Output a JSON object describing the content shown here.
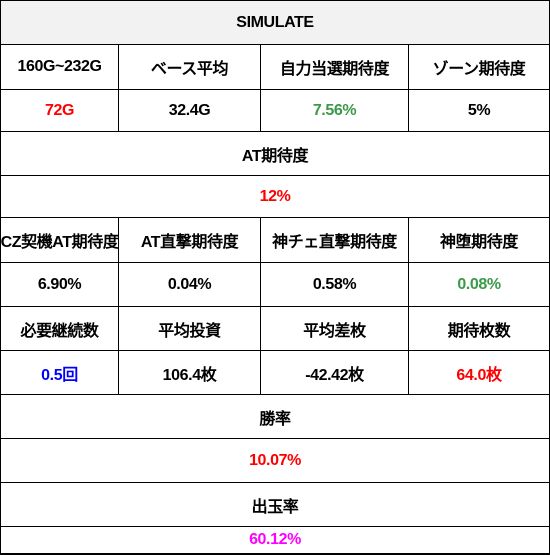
{
  "title": "SIMULATE",
  "row1": {
    "headers": [
      "160G~232G",
      "ベース平均",
      "自力当選期待度",
      "ゾーン期待度"
    ],
    "values": [
      "72G",
      "32.4G",
      "7.56%",
      "5%"
    ]
  },
  "at": {
    "label": "AT期待度",
    "value": "12%"
  },
  "row2": {
    "headers": [
      "CZ契機AT期待度",
      "AT直撃期待度",
      "神チェ直撃期待度",
      "神堕期待度"
    ],
    "values": [
      "6.90%",
      "0.04%",
      "0.58%",
      "0.08%"
    ]
  },
  "row3": {
    "headers": [
      "必要継続数",
      "平均投資",
      "平均差枚",
      "期待枚数"
    ],
    "values": [
      "0.5回",
      "106.4枚",
      "-42.42枚",
      "64.0枚"
    ]
  },
  "win": {
    "label": "勝率",
    "value": "10.07%"
  },
  "payout": {
    "label": "出玉率",
    "value": "60.12%"
  },
  "colors": {
    "red": "#ff0000",
    "green": "#3a9a4a",
    "blue": "#0000ff",
    "magenta": "#ff00ff",
    "border": "#000000"
  }
}
